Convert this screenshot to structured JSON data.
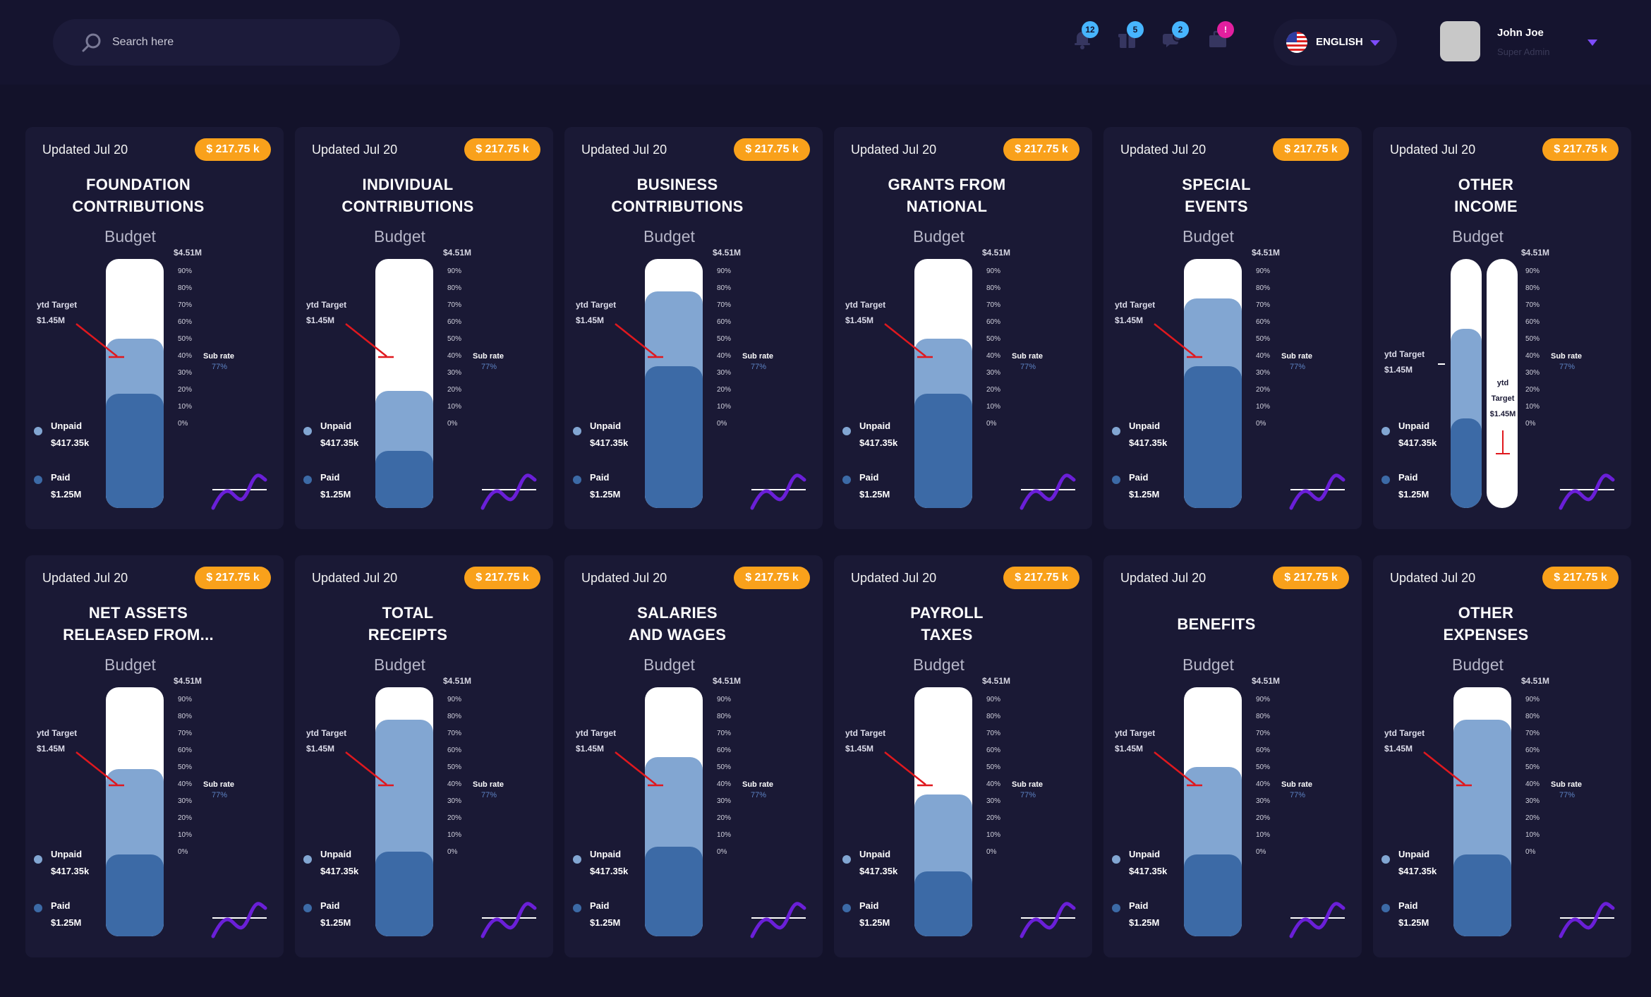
{
  "header": {
    "search_placeholder": "Search here",
    "notifications": [
      {
        "icon": "bell-icon",
        "count": "12",
        "color": "#47b5ff"
      },
      {
        "icon": "gift-icon",
        "count": "5",
        "color": "#47b5ff"
      },
      {
        "icon": "chat-icon",
        "count": "2",
        "color": "#47b5ff"
      },
      {
        "icon": "briefcase-icon",
        "count": "!",
        "color": "#e21f9f"
      }
    ],
    "language": "ENGLISH",
    "user_name": "John Joe",
    "user_role": "Super Admin"
  },
  "card_common": {
    "updated": "Updated Jul 20",
    "amount": "$ 217.75 k",
    "budget_label": "Budget",
    "max_label": "$4.51M",
    "ticks": [
      "90%",
      "80%",
      "70%",
      "60%",
      "50%",
      "40%",
      "30%",
      "20%",
      "10%",
      "0%"
    ],
    "ytd_label": "ytd Target",
    "ytd_value": "$1.45M",
    "ytd_vertical": [
      "ytd",
      "Target",
      "$1.45M"
    ],
    "sub_rate_label": "Sub rate",
    "sub_rate_value": "77%",
    "unpaid_label": "Unpaid",
    "unpaid_value": "$417.35k",
    "paid_label": "Paid",
    "paid_value": "$1.25M"
  },
  "colors": {
    "paid": "#3c6aa6",
    "unpaid": "#82a6d2",
    "remaining": "#ffffff",
    "target_arrow": "#e0181e",
    "badge": "#f9a11b",
    "spark": "#6a1fd8"
  },
  "cards": [
    {
      "title_lines": [
        "FOUNDATION",
        "CONTRIBUTIONS"
      ],
      "paid_pct": 46,
      "unpaid_pct": 68
    },
    {
      "title_lines": [
        "INDIVIDUAL",
        "CONTRIBUTIONS"
      ],
      "paid_pct": 23,
      "unpaid_pct": 47
    },
    {
      "title_lines": [
        "BUSINESS",
        "CONTRIBUTIONS"
      ],
      "paid_pct": 57,
      "unpaid_pct": 87
    },
    {
      "title_lines": [
        "GRANTS FROM",
        "NATIONAL"
      ],
      "paid_pct": 46,
      "unpaid_pct": 68
    },
    {
      "title_lines": [
        "SPECIAL",
        "EVENTS"
      ],
      "paid_pct": 57,
      "unpaid_pct": 84
    },
    {
      "title_lines": [
        "OTHER",
        "INCOME"
      ],
      "paid_pct": 36,
      "unpaid_pct": 72,
      "split": true
    },
    {
      "title_lines": [
        "NET ASSETS",
        "RELEASED FROM..."
      ],
      "paid_pct": 33,
      "unpaid_pct": 67
    },
    {
      "title_lines": [
        "TOTAL",
        "RECEIPTS"
      ],
      "paid_pct": 34,
      "unpaid_pct": 87
    },
    {
      "title_lines": [
        "SALARIES",
        "AND WAGES"
      ],
      "paid_pct": 36,
      "unpaid_pct": 72
    },
    {
      "title_lines": [
        "PAYROLL",
        "TAXES"
      ],
      "paid_pct": 26,
      "unpaid_pct": 57
    },
    {
      "title_lines": [
        "BENEFITS"
      ],
      "paid_pct": 33,
      "unpaid_pct": 68
    },
    {
      "title_lines": [
        "OTHER",
        "EXPENSES"
      ],
      "paid_pct": 33,
      "unpaid_pct": 87
    }
  ]
}
